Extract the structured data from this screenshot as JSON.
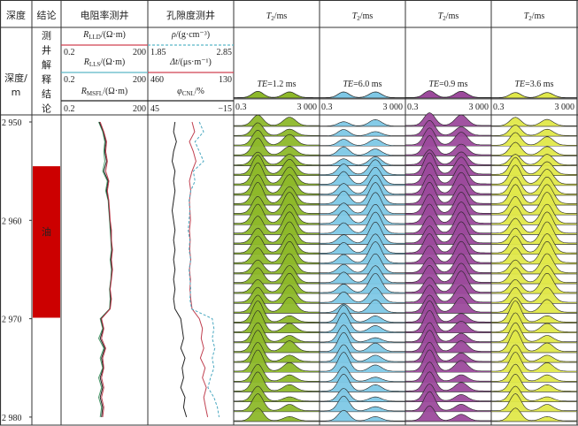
{
  "headers": {
    "depth": "深度",
    "conclusion": "结论",
    "resistivity": "电阻率测井",
    "porosity": "孔隙度测井",
    "t2_symbol": "T",
    "t2_sub": "2",
    "t2_unit": "/ms"
  },
  "depth_axis": {
    "label_line1": "深度/",
    "label_line2": "m",
    "ticks": [
      "2 950",
      "2 960",
      "2 970",
      "2 980"
    ],
    "tick_values": [
      2950,
      2960,
      2970,
      2980
    ]
  },
  "conclusion_column": {
    "title_chars": [
      "测",
      "井",
      "解",
      "释",
      "结",
      "论"
    ],
    "zones": [
      {
        "top": 2954.5,
        "bottom": 2969.9,
        "label": "油",
        "color": "#cc0000"
      }
    ]
  },
  "resistivity_curves": [
    {
      "symbol": "R",
      "sub": "LLD",
      "unit": "/(Ω·m)",
      "min": "0.2",
      "max": "200",
      "color": "#d04050"
    },
    {
      "symbol": "R",
      "sub": "LLS",
      "unit": "/(Ω·m)",
      "min": "0.2",
      "max": "200",
      "color": "#5ab8c8"
    },
    {
      "symbol": "R",
      "sub": "MSFL",
      "unit": "/(Ω·m)",
      "min": "0.2",
      "max": "200",
      "color": "#222222"
    }
  ],
  "porosity_curves": [
    {
      "symbol": "ρ",
      "sub": "",
      "unit": "/(g·cm⁻³)",
      "min": "1.85",
      "max": "2.85",
      "color": "#5ab8c8",
      "dashed": true
    },
    {
      "symbol": "Δt",
      "sub": "",
      "unit": "/(μs·m⁻¹)",
      "min": "460",
      "max": "130",
      "color": "#d04050",
      "dashed": false
    },
    {
      "symbol": "φ",
      "sub": "CNL",
      "unit": "/%",
      "min": "45",
      "max": "−15",
      "color": "#222222",
      "dashed": false
    }
  ],
  "nmr_tracks": [
    {
      "te_label": "TE",
      "te_value": "=1.2 ms",
      "scale_min": "0.3",
      "scale_max": "3 000",
      "color": "#8db82a"
    },
    {
      "te_label": "TE",
      "te_value": "=6.0 ms",
      "scale_min": "0.3",
      "scale_max": "3 000",
      "color": "#7ec8e6"
    },
    {
      "te_label": "TE",
      "te_value": "=0.9 ms",
      "scale_min": "0.3",
      "scale_max": "3 000",
      "color": "#9c4a9c"
    },
    {
      "te_label": "TE",
      "te_value": "=3.6 ms",
      "scale_min": "0.3",
      "scale_max": "3 000",
      "color": "#e0e84a"
    }
  ],
  "chart_data": {
    "type": "line",
    "depth_range": [
      2949.3,
      2980.8
    ],
    "depths": [
      2950,
      2951,
      2952,
      2953,
      2954,
      2955,
      2956,
      2957,
      2958,
      2959,
      2960,
      2961,
      2962,
      2963,
      2964,
      2965,
      2966,
      2967,
      2968,
      2969,
      2970,
      2971,
      2972,
      2973,
      2974,
      2975,
      2976,
      2977,
      2978,
      2979,
      2980
    ],
    "resistivity": {
      "scale": "log",
      "range": [
        0.2,
        200
      ],
      "LLD": [
        4.5,
        6,
        7.5,
        7,
        8,
        7,
        9,
        8,
        9,
        9.5,
        10,
        11,
        11,
        12,
        11,
        12,
        11,
        10,
        11,
        10,
        5,
        6,
        5,
        7,
        5.5,
        6,
        5,
        6,
        5,
        6,
        5.5
      ],
      "LLS": [
        4,
        5.5,
        6.5,
        6,
        6.5,
        5.5,
        8,
        7,
        8.5,
        9,
        9.5,
        10,
        10.5,
        11,
        10,
        11,
        10.5,
        9.5,
        10,
        9.5,
        4.5,
        5.5,
        4,
        6,
        4.5,
        5.5,
        4,
        5,
        4,
        5,
        4.5
      ],
      "MSFL": [
        4.2,
        5.8,
        7,
        6.5,
        7.5,
        6,
        8.5,
        7.5,
        8.8,
        9.2,
        9.8,
        10.5,
        10.8,
        11.5,
        10.5,
        11.5,
        10.8,
        9.8,
        10.5,
        9.8,
        4.8,
        5.8,
        4.5,
        6.5,
        5,
        5.8,
        4.5,
        5.5,
        4.5,
        5.5,
        5
      ]
    },
    "porosity": {
      "DEN": [
        2.45,
        2.5,
        2.4,
        2.45,
        2.5,
        2.38,
        2.4,
        2.35,
        2.33,
        2.34,
        2.33,
        2.32,
        2.34,
        2.33,
        2.35,
        2.33,
        2.34,
        2.35,
        2.34,
        2.36,
        2.6,
        2.62,
        2.6,
        2.63,
        2.6,
        2.62,
        2.58,
        2.55,
        2.62,
        2.66,
        2.68
      ],
      "AC": [
        290,
        280,
        300,
        285,
        275,
        290,
        300,
        295,
        300,
        298,
        296,
        300,
        297,
        299,
        295,
        300,
        296,
        298,
        295,
        290,
        262,
        250,
        255,
        245,
        258,
        240,
        250,
        235,
        245,
        238,
        230
      ],
      "CNL": [
        26,
        27,
        25,
        27,
        28,
        26,
        27,
        26,
        27,
        28,
        27,
        26,
        27,
        26,
        27,
        26,
        27,
        26,
        27,
        26,
        22,
        21,
        20,
        22,
        19,
        21,
        20,
        22,
        19,
        20,
        18
      ]
    },
    "nmr": {
      "t2_range_ms": [
        0.3,
        3000
      ],
      "scale": "log",
      "peak_t2_ms": [
        4,
        120
      ],
      "header_spectra": [
        [
          0.55,
          0.5
        ],
        [
          0.5,
          0.5
        ],
        [
          0.6,
          0.55
        ],
        [
          0.45,
          0.45
        ]
      ],
      "amplitudes": [
        [
          [
            0.5,
            0.4
          ],
          [
            0.6,
            0.3
          ],
          [
            0.7,
            0.5
          ],
          [
            0.8,
            0.4
          ],
          [
            0.6,
            0.5
          ],
          [
            0.9,
            0.7
          ],
          [
            1,
            0.8
          ],
          [
            0.9,
            0.9
          ],
          [
            1,
            0.8
          ],
          [
            0.8,
            1
          ],
          [
            0.9,
            0.9
          ],
          [
            0.8,
            1
          ],
          [
            0.7,
            1
          ],
          [
            0.8,
            0.9
          ],
          [
            0.7,
            1
          ],
          [
            0.6,
            0.9
          ],
          [
            0.7,
            0.8
          ],
          [
            0.6,
            0.9
          ],
          [
            0.7,
            0.8
          ],
          [
            0.8,
            0.7
          ],
          [
            1,
            0.3
          ],
          [
            1,
            0.4
          ],
          [
            0.9,
            0.3
          ],
          [
            1,
            0.5
          ],
          [
            0.9,
            0.3
          ],
          [
            1,
            0.4
          ],
          [
            0.8,
            0.3
          ],
          [
            0.9,
            0.3
          ],
          [
            0.7,
            0.2
          ],
          [
            0.8,
            0.3
          ],
          [
            0.6,
            0.2
          ]
        ],
        [
          [
            0.2,
            0.3
          ],
          [
            0.3,
            0.2
          ],
          [
            0.3,
            0.3
          ],
          [
            0.4,
            0.3
          ],
          [
            0.3,
            0.4
          ],
          [
            0.5,
            0.7
          ],
          [
            0.6,
            0.8
          ],
          [
            0.5,
            0.9
          ],
          [
            0.6,
            1
          ],
          [
            0.5,
            1
          ],
          [
            0.6,
            0.9
          ],
          [
            0.5,
            1
          ],
          [
            0.4,
            1
          ],
          [
            0.5,
            0.9
          ],
          [
            0.4,
            1
          ],
          [
            0.4,
            0.9
          ],
          [
            0.5,
            0.8
          ],
          [
            0.4,
            0.9
          ],
          [
            0.5,
            0.7
          ],
          [
            0.4,
            0.6
          ],
          [
            0.8,
            0.3
          ],
          [
            0.9,
            0.3
          ],
          [
            0.8,
            0.2
          ],
          [
            0.9,
            0.4
          ],
          [
            0.8,
            0.3
          ],
          [
            0.9,
            0.3
          ],
          [
            0.7,
            0.2
          ],
          [
            0.8,
            0.3
          ],
          [
            0.6,
            0.2
          ],
          [
            0.7,
            0.2
          ],
          [
            0.5,
            0.2
          ]
        ],
        [
          [
            0.6,
            0.5
          ],
          [
            0.7,
            0.4
          ],
          [
            0.8,
            0.6
          ],
          [
            0.9,
            0.5
          ],
          [
            0.7,
            0.6
          ],
          [
            1,
            0.8
          ],
          [
            1,
            0.9
          ],
          [
            0.9,
            1
          ],
          [
            1,
            0.9
          ],
          [
            0.9,
            1
          ],
          [
            0.9,
            1
          ],
          [
            0.8,
            1
          ],
          [
            0.8,
            1
          ],
          [
            0.9,
            0.9
          ],
          [
            0.8,
            1
          ],
          [
            0.7,
            0.9
          ],
          [
            0.8,
            0.9
          ],
          [
            0.7,
            1
          ],
          [
            0.8,
            0.8
          ],
          [
            0.8,
            0.7
          ],
          [
            1,
            0.4
          ],
          [
            1,
            0.5
          ],
          [
            0.9,
            0.4
          ],
          [
            1,
            0.5
          ],
          [
            0.9,
            0.4
          ],
          [
            1,
            0.5
          ],
          [
            0.9,
            0.3
          ],
          [
            0.9,
            0.4
          ],
          [
            0.8,
            0.3
          ],
          [
            0.9,
            0.3
          ],
          [
            0.7,
            0.3
          ]
        ],
        [
          [
            0.4,
            0.3
          ],
          [
            0.5,
            0.3
          ],
          [
            0.6,
            0.4
          ],
          [
            0.6,
            0.4
          ],
          [
            0.5,
            0.5
          ],
          [
            0.8,
            0.6
          ],
          [
            0.9,
            0.7
          ],
          [
            0.8,
            0.8
          ],
          [
            0.9,
            0.9
          ],
          [
            0.8,
            1
          ],
          [
            0.8,
            0.9
          ],
          [
            0.7,
            1
          ],
          [
            0.7,
            1
          ],
          [
            0.8,
            0.9
          ],
          [
            0.7,
            1
          ],
          [
            0.6,
            0.9
          ],
          [
            0.7,
            0.8
          ],
          [
            0.6,
            0.9
          ],
          [
            0.7,
            0.7
          ],
          [
            0.7,
            0.6
          ],
          [
            1,
            0.3
          ],
          [
            0.9,
            0.4
          ],
          [
            0.9,
            0.3
          ],
          [
            1,
            0.4
          ],
          [
            0.8,
            0.3
          ],
          [
            0.9,
            0.4
          ],
          [
            0.8,
            0.3
          ],
          [
            0.8,
            0.3
          ],
          [
            0.7,
            0.2
          ],
          [
            0.8,
            0.3
          ],
          [
            0.6,
            0.2
          ]
        ]
      ]
    }
  }
}
